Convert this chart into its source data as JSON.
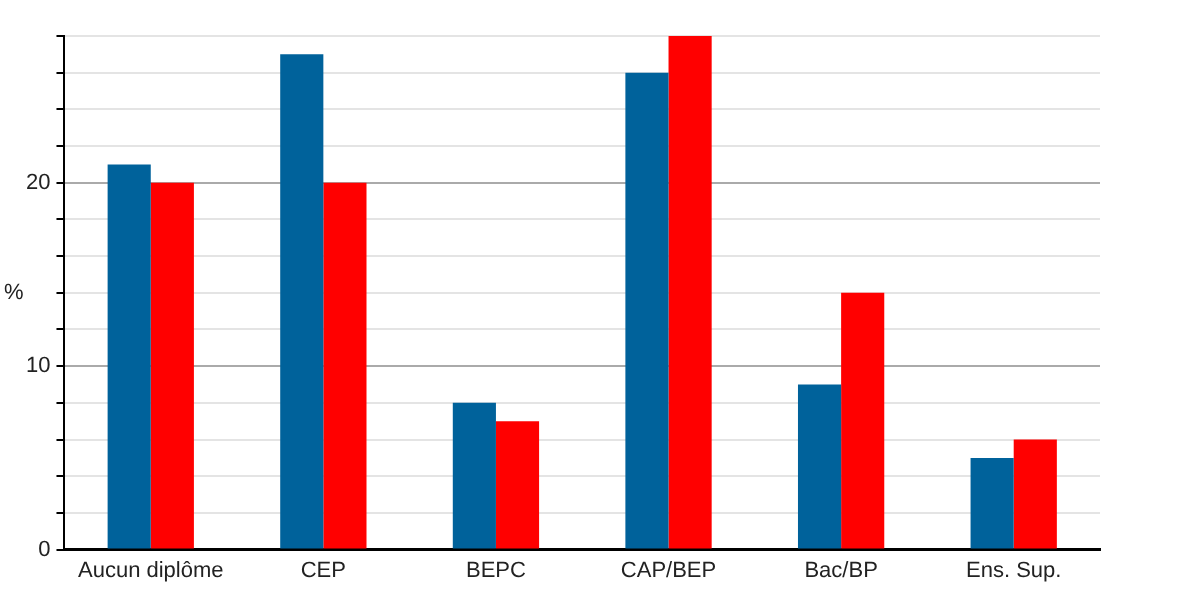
{
  "chart_data": {
    "type": "bar",
    "ylabel": "%",
    "categories": [
      "Aucun diplôme",
      "CEP",
      "BEPC",
      "CAP/BEP",
      "Bac/BP",
      "Ens. Sup."
    ],
    "series": [
      {
        "color": "#00629b",
        "values": [
          21,
          27,
          8,
          26,
          9,
          5
        ]
      },
      {
        "color": "#ff0000",
        "values": [
          20,
          20,
          7,
          28,
          14,
          6
        ]
      }
    ],
    "ylim": [
      0,
      28
    ],
    "yticks": [
      0,
      {
        "value": 2,
        "label": null
      },
      {
        "value": 4,
        "label": null
      },
      {
        "value": 6,
        "label": null
      },
      {
        "value": 8,
        "label": null
      },
      10,
      {
        "value": 12,
        "label": null
      },
      {
        "value": 14,
        "label": null
      },
      {
        "value": 16,
        "label": null
      },
      {
        "value": 18,
        "label": null
      },
      20,
      {
        "value": 22,
        "label": null
      },
      {
        "value": 24,
        "label": null
      },
      {
        "value": 26,
        "label": null
      },
      {
        "value": 28,
        "label": null
      }
    ],
    "grid": "y",
    "legend": false
  }
}
